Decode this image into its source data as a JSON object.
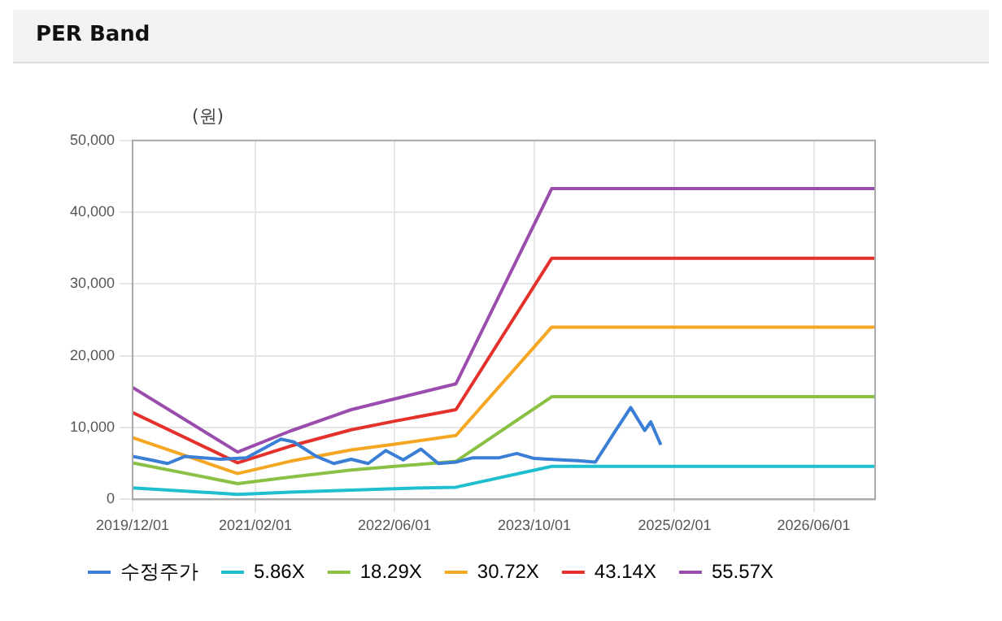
{
  "chart_data": {
    "type": "line",
    "title": "PER Band",
    "ylabel": "(원)",
    "xlim": [
      "2019-12-01",
      "2027-01-01"
    ],
    "xticks": [
      {
        "value": "2019-12-01",
        "label": "2019/12/01"
      },
      {
        "value": "2021-02-01",
        "label": "2021/02/01"
      },
      {
        "value": "2022-06-01",
        "label": "2022/06/01"
      },
      {
        "value": "2023-10-01",
        "label": "2023/10/01"
      },
      {
        "value": "2025-02-01",
        "label": "2025/02/01"
      },
      {
        "value": "2026-06-01",
        "label": "2026/06/01"
      }
    ],
    "ylim": [
      0,
      50000
    ],
    "yticks": [
      0,
      {
        "value": 10000,
        "label": "10,000"
      },
      {
        "value": 20000,
        "label": "20,000"
      },
      {
        "value": 30000,
        "label": "30,000"
      },
      {
        "value": 40000,
        "label": "40,000"
      },
      {
        "value": 50000,
        "label": "50,000"
      }
    ],
    "grid": true,
    "legend": "bottom",
    "marker": "none",
    "line_style": "solid",
    "series": [
      {
        "name": "수정주가",
        "color": "#3a7fd5",
        "x": [
          "2019-12-01",
          "2020-02-01",
          "2020-04-01",
          "2020-06-01",
          "2020-10-01",
          "2021-01-01",
          "2021-05-01",
          "2021-06-15",
          "2021-09-01",
          "2021-11-01",
          "2022-01-01",
          "2022-03-01",
          "2022-05-01",
          "2022-07-01",
          "2022-09-01",
          "2022-11-01",
          "2023-01-01",
          "2023-03-01",
          "2023-06-01",
          "2023-08-01",
          "2023-10-01",
          "2024-01-01",
          "2024-03-01",
          "2024-05-01",
          "2024-07-01",
          "2024-09-01",
          "2024-10-20",
          "2024-11-10",
          "2024-12-15"
        ],
        "values": [
          6000,
          5500,
          5000,
          6000,
          5600,
          5800,
          8400,
          8000,
          6000,
          5000,
          5600,
          5000,
          6800,
          5500,
          7000,
          5000,
          5200,
          5800,
          5800,
          6400,
          5700,
          5500,
          5400,
          5200,
          9000,
          12800,
          9600,
          10800,
          7600
        ]
      },
      {
        "name": "5.86X",
        "color": "#1fbfd0",
        "x": [
          "2019-12-01",
          "2020-12-01",
          "2021-06-01",
          "2022-01-01",
          "2022-06-01",
          "2023-01-01",
          "2023-12-01",
          "2027-01-01"
        ],
        "values": [
          1600,
          700,
          1000,
          1300,
          1500,
          1700,
          4600,
          4600
        ]
      },
      {
        "name": "18.29X",
        "color": "#8ac043",
        "x": [
          "2019-12-01",
          "2020-12-01",
          "2021-06-01",
          "2022-01-01",
          "2022-06-01",
          "2023-01-01",
          "2023-12-01",
          "2027-01-01"
        ],
        "values": [
          5100,
          2200,
          3100,
          4100,
          4600,
          5300,
          14300,
          14300
        ]
      },
      {
        "name": "30.72X",
        "color": "#f5a623",
        "x": [
          "2019-12-01",
          "2020-12-01",
          "2021-06-01",
          "2022-01-01",
          "2022-06-01",
          "2023-01-01",
          "2023-12-01",
          "2027-01-01"
        ],
        "values": [
          8600,
          3600,
          5300,
          6900,
          7700,
          8900,
          24000,
          24000
        ]
      },
      {
        "name": "43.14X",
        "color": "#e5312b",
        "x": [
          "2019-12-01",
          "2020-12-01",
          "2021-06-01",
          "2022-01-01",
          "2022-06-01",
          "2023-01-01",
          "2023-12-01",
          "2027-01-01"
        ],
        "values": [
          12100,
          5100,
          7400,
          9700,
          10900,
          12500,
          33600,
          33600
        ]
      },
      {
        "name": "55.57X",
        "color": "#9b4dad",
        "x": [
          "2019-12-01",
          "2020-12-01",
          "2021-06-01",
          "2022-01-01",
          "2022-06-01",
          "2023-01-01",
          "2023-12-01",
          "2027-01-01"
        ],
        "values": [
          15600,
          6600,
          9500,
          12500,
          14000,
          16100,
          43300,
          43300
        ]
      }
    ]
  }
}
